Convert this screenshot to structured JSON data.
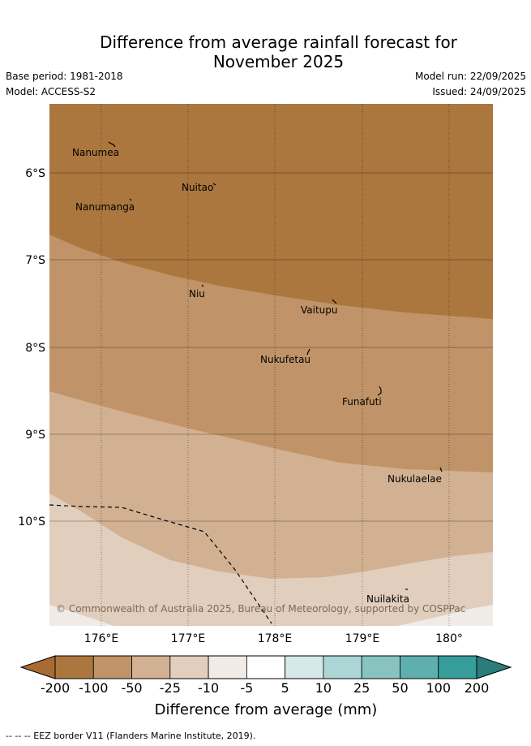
{
  "title_line1": "Difference from average rainfall forecast for",
  "title_line2": "November 2025",
  "meta": {
    "base_period": "Base period: 1981-2018",
    "model": "Model: ACCESS-S2",
    "model_run": "Model run: 22/09/2025",
    "issued": "Issued: 24/09/2025"
  },
  "lat_labels": [
    "6°S",
    "7°S",
    "8°S",
    "9°S",
    "10°S"
  ],
  "lon_labels": [
    "176°E",
    "177°E",
    "178°E",
    "179°E",
    "180°"
  ],
  "places": [
    "Nanumea",
    "Nuitao",
    "Nanumanga",
    "Niu",
    "Vaitupu",
    "Nukufetau",
    "Funafuti",
    "Nukulaelae",
    "Nuilakita"
  ],
  "copyright": "© Commonwealth of Australia 2025, Bureau of Meteorology, supported by COSPPac",
  "colorbar": {
    "ticks": [
      "-200",
      "-100",
      "-50",
      "-25",
      "-10",
      "-5",
      "5",
      "10",
      "25",
      "50",
      "100",
      "200"
    ],
    "colors": [
      "#ab773e",
      "#c09468",
      "#d1b192",
      "#e1cebd",
      "#f1ebe7",
      "#ffffff",
      "#d4e9e8",
      "#acd6d5",
      "#88c3c2",
      "#5eafae",
      "#369d9b"
    ],
    "low_extend_color": "#a86b34",
    "high_extend_color": "#2b7d7c",
    "label": "Difference from average (mm)"
  },
  "legend_note": "-- -- -- EEZ border V11 (Flanders Marine Institute, 2019)."
}
